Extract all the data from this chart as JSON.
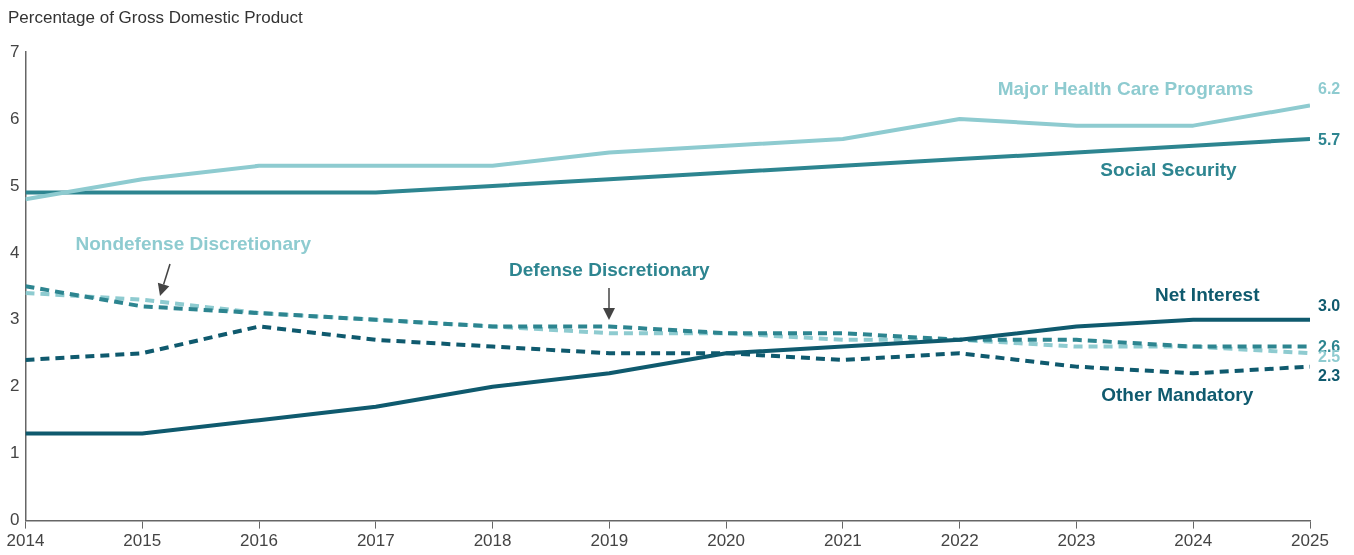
{
  "chart_data": {
    "type": "line",
    "ylabel": "Percentage of Gross Domestic Product",
    "x": [
      2014,
      2015,
      2016,
      2017,
      2018,
      2019,
      2020,
      2021,
      2022,
      2023,
      2024,
      2025
    ],
    "xlim": [
      2014,
      2025
    ],
    "xticks": [
      2014,
      2015,
      2016,
      2017,
      2018,
      2019,
      2020,
      2021,
      2022,
      2023,
      2024,
      2025
    ],
    "ylim": [
      0,
      7
    ],
    "yticks": [
      0,
      1,
      2,
      3,
      4,
      5,
      6,
      7
    ],
    "grid": false,
    "legend": false,
    "marker": "none",
    "series": [
      {
        "name": "Major Health Care Programs",
        "color": "#8ecbd0",
        "line_style": "solid",
        "values": [
          4.8,
          5.1,
          5.3,
          5.3,
          5.3,
          5.5,
          5.6,
          5.7,
          6.0,
          5.9,
          5.9,
          6.2
        ],
        "value_labels": [
          null,
          null,
          null,
          null,
          null,
          null,
          null,
          null,
          null,
          null,
          null,
          "6.2"
        ]
      },
      {
        "name": "Social Security",
        "color": "#2d8590",
        "line_style": "solid",
        "values": [
          4.9,
          4.9,
          4.9,
          4.9,
          5.0,
          5.1,
          5.2,
          5.3,
          5.4,
          5.5,
          5.6,
          5.7
        ],
        "value_labels": [
          null,
          null,
          null,
          null,
          null,
          null,
          null,
          null,
          null,
          null,
          null,
          "5.7"
        ]
      },
      {
        "name": "Net Interest",
        "color": "#0f5a6e",
        "line_style": "solid",
        "values": [
          1.3,
          1.3,
          1.5,
          1.7,
          2.0,
          2.2,
          2.5,
          2.6,
          2.7,
          2.9,
          3.0,
          3.0
        ],
        "value_labels": [
          null,
          null,
          null,
          null,
          null,
          null,
          null,
          null,
          null,
          null,
          null,
          "3.0"
        ]
      },
      {
        "name": "Other Mandatory",
        "color": "#0f5a6e",
        "line_style": "dashed",
        "values": [
          2.4,
          2.5,
          2.9,
          2.7,
          2.6,
          2.5,
          2.5,
          2.4,
          2.5,
          2.3,
          2.2,
          2.3
        ],
        "value_labels": [
          null,
          null,
          null,
          null,
          null,
          null,
          null,
          null,
          null,
          null,
          null,
          "2.3"
        ]
      },
      {
        "name": "Defense Discretionary",
        "color": "#2d8590",
        "line_style": "dashed",
        "values": [
          3.5,
          3.2,
          3.1,
          3.0,
          2.9,
          2.9,
          2.8,
          2.8,
          2.7,
          2.7,
          2.6,
          2.6
        ],
        "value_labels": [
          null,
          null,
          null,
          null,
          null,
          null,
          null,
          null,
          null,
          null,
          null,
          "2.6"
        ]
      },
      {
        "name": "Nondefense Discretionary",
        "color": "#8ecbd0",
        "line_style": "dashed",
        "values": [
          3.4,
          3.3,
          3.1,
          3.0,
          2.9,
          2.8,
          2.8,
          2.7,
          2.7,
          2.6,
          2.6,
          2.5
        ],
        "value_labels": [
          null,
          null,
          null,
          null,
          null,
          null,
          null,
          null,
          null,
          null,
          null,
          "2.5"
        ]
      }
    ]
  }
}
